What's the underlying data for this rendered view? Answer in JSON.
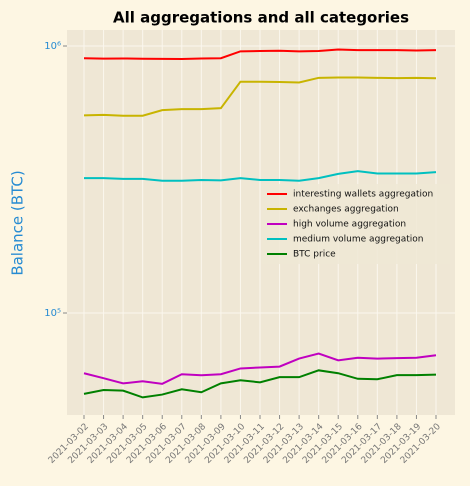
{
  "chart_data": {
    "type": "line",
    "title": "All aggregations and all categories",
    "y_label": "Balance (BTC)",
    "categories": [
      "2021-03-02",
      "2021-03-03",
      "2021-03-04",
      "2021-03-05",
      "2021-03-06",
      "2021-03-07",
      "2021-03-08",
      "2021-03-09",
      "2021-03-10",
      "2021-03-11",
      "2021-03-12",
      "2021-03-13",
      "2021-03-14",
      "2021-03-15",
      "2021-03-16",
      "2021-03-17",
      "2021-03-18",
      "2021-03-19",
      "2021-03-20"
    ],
    "series": [
      {
        "name": "interesting wallets aggregation",
        "color": "#ff0000",
        "values": [
          900000,
          897000,
          898000,
          896000,
          895000,
          894000,
          898000,
          900000,
          955000,
          958000,
          960000,
          955000,
          958000,
          970000,
          965000,
          965000,
          965000,
          962000,
          965000
        ]
      },
      {
        "name": "exchanges aggregation",
        "color": "#c8b400",
        "values": [
          550000,
          552000,
          548000,
          548000,
          575000,
          580000,
          580000,
          585000,
          735000,
          735000,
          733000,
          730000,
          760000,
          762000,
          762000,
          760000,
          758000,
          760000,
          757000
        ]
      },
      {
        "name": "high volume aggregation",
        "color": "#c000c0",
        "values": [
          59500,
          57000,
          54500,
          55500,
          54300,
          59000,
          58500,
          59000,
          62000,
          62500,
          63000,
          67500,
          70500,
          66500,
          68000,
          67500,
          67800,
          68000,
          69500
        ]
      },
      {
        "name": "medium volume aggregation",
        "color": "#00c0c0",
        "values": [
          320000,
          320000,
          318000,
          318000,
          313000,
          313000,
          315000,
          314000,
          320000,
          315000,
          315000,
          313000,
          320000,
          332000,
          340000,
          333000,
          333000,
          333000,
          337000
        ]
      },
      {
        "name": "BTC price",
        "color": "#008000",
        "values": [
          49800,
          51500,
          51200,
          48300,
          49500,
          51800,
          50500,
          54500,
          56000,
          55000,
          57500,
          57500,
          61000,
          59500,
          56700,
          56500,
          58500,
          58500,
          58800
        ]
      }
    ],
    "ylim": [
      41500,
      1148000
    ],
    "log_y": true,
    "yticks": [
      {
        "value": 100000,
        "label": "10⁵"
      },
      {
        "value": 1000000,
        "label": "10⁶"
      }
    ],
    "grid": true,
    "legend": "right"
  }
}
